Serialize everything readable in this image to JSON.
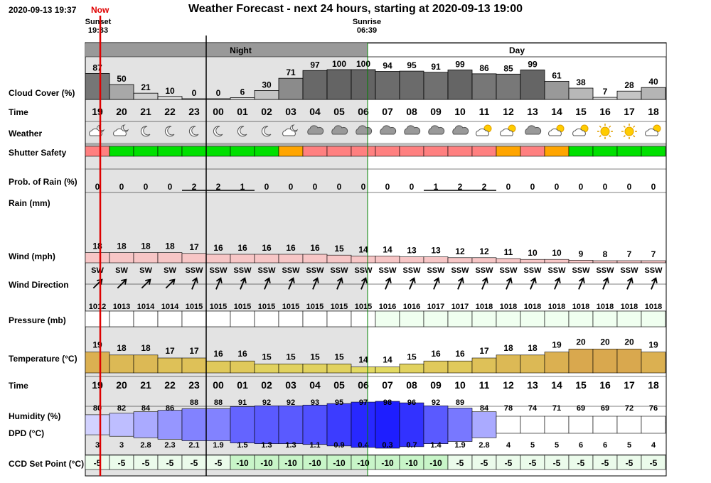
{
  "header": {
    "date": "2020-09-13 19:37",
    "now_label": "Now",
    "title": "Weather Forecast - next 24 hours, starting at 2020-09-13 19:00"
  },
  "events": {
    "sunset_label": "Sunset",
    "sunset_time": "19:33",
    "sunrise_label": "Sunrise",
    "sunrise_time": "06:39"
  },
  "bands": {
    "night": "Night",
    "day": "Day"
  },
  "labels": {
    "cloud": "Cloud Cover (%)",
    "time": "Time",
    "weather": "Weather",
    "shutter": "Shutter Safety",
    "prob_rain": "Prob. of Rain (%)",
    "rain": "Rain (mm)",
    "wind": "Wind (mph)",
    "wind_dir": "Wind Direction",
    "pressure": "Pressure (mb)",
    "temperature": "Temperature (°C)",
    "time2": "Time",
    "humidity": "Humidity (%)",
    "dpd": "DPD (°C)",
    "ccd": "CCD Set Point (°C)"
  },
  "colors": {
    "night_bg": "#e3e3e3",
    "night_band": "#999999",
    "now_line": "#dd0000",
    "safe": "#00e000",
    "caution": "#ffa500",
    "unsafe": "#ff8080",
    "temperature": "#d9a84e",
    "humidity": "#4040ff",
    "wind": "#f7c6c6"
  },
  "chart_data": {
    "type": "table",
    "hours": [
      "19",
      "20",
      "21",
      "22",
      "23",
      "00",
      "01",
      "02",
      "03",
      "04",
      "05",
      "06",
      "07",
      "08",
      "09",
      "10",
      "11",
      "12",
      "13",
      "14",
      "15",
      "16",
      "17",
      "18"
    ],
    "cloud_cover": [
      87,
      50,
      21,
      10,
      0,
      0,
      6,
      30,
      71,
      97,
      100,
      100,
      94,
      95,
      91,
      99,
      86,
      85,
      99,
      61,
      38,
      7,
      28,
      40
    ],
    "weather_icons": [
      "partly-cloudy-night",
      "partly-cloudy-night",
      "moon",
      "moon",
      "moon",
      "moon",
      "moon",
      "moon",
      "partly-cloudy-night",
      "cloudy",
      "cloudy",
      "cloudy",
      "cloudy",
      "cloudy",
      "cloudy",
      "cloudy",
      "partly-cloudy",
      "partly-cloudy",
      "cloudy",
      "partly-cloudy",
      "partly-cloudy",
      "sun",
      "sun",
      "partly-cloudy"
    ],
    "shutter_safety": [
      "unsafe",
      "safe",
      "safe",
      "safe",
      "safe",
      "safe",
      "safe",
      "safe",
      "caution",
      "unsafe",
      "unsafe",
      "unsafe",
      "unsafe",
      "unsafe",
      "unsafe",
      "unsafe",
      "unsafe",
      "caution",
      "unsafe",
      "caution",
      "safe",
      "safe",
      "safe",
      "safe"
    ],
    "prob_rain": [
      0,
      0,
      0,
      0,
      2,
      2,
      1,
      0,
      0,
      0,
      0,
      0,
      0,
      0,
      1,
      2,
      2,
      0,
      0,
      0,
      0,
      0,
      0,
      0
    ],
    "wind_mph": [
      18,
      18,
      18,
      18,
      17,
      16,
      16,
      16,
      16,
      16,
      15,
      14,
      14,
      13,
      13,
      12,
      12,
      11,
      10,
      10,
      9,
      8,
      7,
      7
    ],
    "wind_direction": [
      "SW",
      "SW",
      "SW",
      "SW",
      "SSW",
      "SSW",
      "SSW",
      "SSW",
      "SSW",
      "SSW",
      "SSW",
      "SSW",
      "SSW",
      "SSW",
      "SSW",
      "SSW",
      "SSW",
      "SSW",
      "SSW",
      "SSW",
      "SSW",
      "SSW",
      "SSW",
      "SSW"
    ],
    "pressure_mb": [
      1012,
      1013,
      1014,
      1014,
      1015,
      1015,
      1015,
      1015,
      1015,
      1015,
      1015,
      1015,
      1016,
      1016,
      1017,
      1017,
      1018,
      1018,
      1018,
      1018,
      1018,
      1018,
      1018,
      1018
    ],
    "temperature_c": [
      19,
      18,
      18,
      17,
      17,
      16,
      16,
      15,
      15,
      15,
      15,
      14,
      14,
      15,
      16,
      16,
      17,
      18,
      18,
      19,
      20,
      20,
      20,
      19
    ],
    "humidity_pct": [
      80,
      82,
      84,
      86,
      88,
      88,
      91,
      92,
      92,
      93,
      95,
      97,
      98,
      96,
      92,
      89,
      84,
      78,
      74,
      71,
      69,
      69,
      72,
      76
    ],
    "dpd_c": [
      "3",
      "3",
      "2.8",
      "2.3",
      "2.1",
      "1.9",
      "1.5",
      "1.3",
      "1.3",
      "1.1",
      "0.9",
      "0.4",
      "0.3",
      "0.7",
      "1.4",
      "1.9",
      "2.8",
      "4",
      "5",
      "5",
      "6",
      "6",
      "5",
      "4"
    ],
    "ccd_setpoint_c": [
      -5,
      -5,
      -5,
      -5,
      -5,
      -5,
      -10,
      -10,
      -10,
      -10,
      -10,
      -10,
      -10,
      -10,
      -10,
      -5,
      -5,
      -5,
      -5,
      -5,
      -5,
      -5,
      -5,
      -5
    ]
  }
}
